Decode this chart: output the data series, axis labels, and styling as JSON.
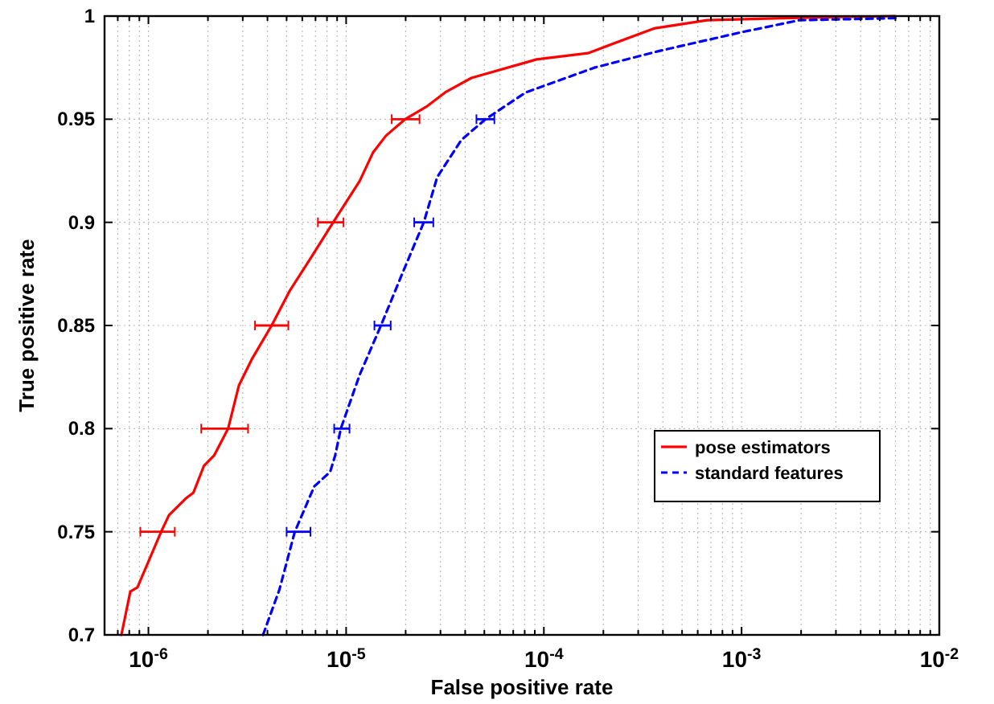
{
  "chart_data": {
    "type": "line",
    "xlabel": "False positive rate",
    "ylabel": "True positive rate",
    "log": "x",
    "grid": true,
    "legend": "bottom right",
    "xlim": [
      6e-07,
      0.01
    ],
    "ylim": [
      0.7,
      1
    ],
    "xticks": [
      {
        "value": 7e-07,
        "label": null
      },
      {
        "value": 8e-07,
        "label": null
      },
      {
        "value": 9e-07,
        "label": null
      },
      {
        "value": 1e-06,
        "label": "10$^{-6}$"
      },
      {
        "value": 2e-06,
        "label": null
      },
      {
        "value": 3e-06,
        "label": null
      },
      {
        "value": 4e-06,
        "label": null
      },
      {
        "value": 5e-06,
        "label": null
      },
      {
        "value": 6e-06,
        "label": null
      },
      {
        "value": 7e-06,
        "label": null
      },
      {
        "value": 8e-06,
        "label": null
      },
      {
        "value": 9e-06,
        "label": null
      },
      {
        "value": 1e-05,
        "label": "10$^{-5}$"
      },
      {
        "value": 2e-05,
        "label": null
      },
      {
        "value": 3e-05,
        "label": null
      },
      {
        "value": 4e-05,
        "label": null
      },
      {
        "value": 5e-05,
        "label": null
      },
      {
        "value": 6e-05,
        "label": null
      },
      {
        "value": 7e-05,
        "label": null
      },
      {
        "value": 8e-05,
        "label": null
      },
      {
        "value": 9e-05,
        "label": null
      },
      {
        "value": 0.0001,
        "label": "10$^{-4}$"
      },
      {
        "value": 0.0002,
        "label": null
      },
      {
        "value": 0.0003,
        "label": null
      },
      {
        "value": 0.0004,
        "label": null
      },
      {
        "value": 0.0005,
        "label": null
      },
      {
        "value": 0.0006,
        "label": null
      },
      {
        "value": 0.0007,
        "label": null
      },
      {
        "value": 0.0008,
        "label": null
      },
      {
        "value": 0.0009,
        "label": null
      },
      {
        "value": 0.001,
        "label": "10$^{-3}$"
      },
      {
        "value": 0.002,
        "label": null
      },
      {
        "value": 0.003,
        "label": null
      },
      {
        "value": 0.004,
        "label": null
      },
      {
        "value": 0.005,
        "label": null
      },
      {
        "value": 0.006,
        "label": null
      },
      {
        "value": 0.007,
        "label": null
      },
      {
        "value": 0.008,
        "label": null
      },
      {
        "value": 0.009,
        "label": null
      },
      {
        "value": 0.01,
        "label": "10$^{-2}$"
      }
    ],
    "yticks": [
      0.7,
      0.75,
      0.8,
      0.85,
      0.9,
      0.95,
      1
    ],
    "series": [
      {
        "name": "pose estimators",
        "color": "#ff0000",
        "line_style": "solid",
        "x": [
          7.3e-07,
          8.1e-07,
          8.8e-07,
          1.16e-06,
          1.27e-06,
          1.54e-06,
          1.69e-06,
          1.91e-06,
          2.15e-06,
          2.53e-06,
          2.87e-06,
          3.35e-06,
          4.2e-06,
          5.2e-06,
          6.65e-06,
          8.6e-06,
          1.17e-05,
          1.37e-05,
          1.59e-05,
          1.99e-05,
          2.54e-05,
          3.17e-05,
          4.3e-05,
          9.2e-05,
          0.000167,
          0.00036,
          0.00067,
          0.0016,
          0.006
        ],
        "values": [
          0.7,
          0.721,
          0.723,
          0.75,
          0.758,
          0.766,
          0.769,
          0.782,
          0.787,
          0.8,
          0.821,
          0.834,
          0.85,
          0.867,
          0.883,
          0.9,
          0.92,
          0.934,
          0.942,
          0.95,
          0.956,
          0.963,
          0.97,
          0.979,
          0.982,
          0.994,
          0.998,
          0.999,
          1
        ],
        "xerrors": [
          null,
          null,
          null,
          [
            9.1e-07,
            1.36e-06
          ],
          null,
          null,
          null,
          null,
          null,
          [
            1.85e-06,
            3.19e-06
          ],
          null,
          null,
          [
            3.46e-06,
            5.1e-06
          ],
          null,
          null,
          [
            7.2e-06,
            9.7e-06
          ],
          null,
          null,
          null,
          [
            1.7e-05,
            2.35e-05
          ],
          null,
          null,
          null,
          null,
          null,
          null,
          null,
          null,
          null
        ]
      },
      {
        "name": "standard features",
        "color": "#0000ff",
        "line_style": "dashed",
        "x": [
          3.8e-06,
          4.6e-06,
          5.5e-06,
          6.9e-06,
          8.3e-06,
          8.8e-06,
          9.4e-06,
          1.17e-05,
          1.5e-05,
          1.92e-05,
          2.47e-05,
          2.89e-05,
          3.83e-05,
          5.07e-05,
          8.1e-05,
          0.00018,
          0.00038,
          0.00098,
          0.00196,
          0.006
        ],
        "values": [
          0.7,
          0.722,
          0.75,
          0.772,
          0.779,
          0.787,
          0.8,
          0.826,
          0.85,
          0.875,
          0.9,
          0.922,
          0.94,
          0.95,
          0.963,
          0.975,
          0.983,
          0.992,
          0.998,
          0.999
        ],
        "xerrors": [
          null,
          null,
          [
            5e-06,
            6.6e-06
          ],
          null,
          null,
          null,
          [
            8.7e-06,
            1.04e-05
          ],
          null,
          [
            1.39e-05,
            1.68e-05
          ],
          null,
          [
            2.21e-05,
            2.76e-05
          ],
          null,
          null,
          [
            4.56e-05,
            5.62e-05
          ],
          null,
          null,
          null,
          null,
          null,
          null
        ]
      }
    ]
  }
}
